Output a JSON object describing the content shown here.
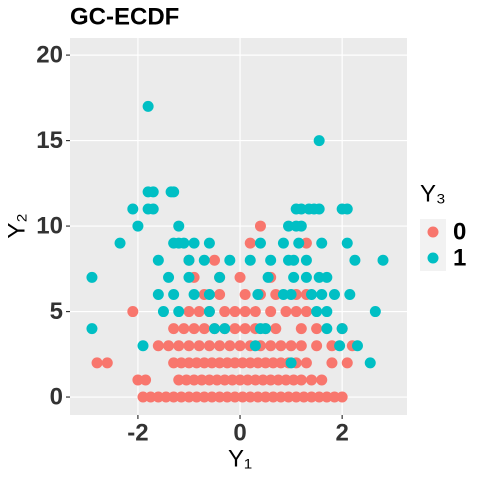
{
  "chart_data": {
    "type": "scatter",
    "title": "GC-ECDF",
    "xlabel": "Y₁",
    "ylabel": "Y₂",
    "legend_title": "Y₃",
    "legend": "right",
    "grid": true,
    "xlim": [
      -3.33,
      3.27
    ],
    "ylim": [
      -1.05,
      21.0
    ],
    "xticks": [
      -2,
      0,
      2
    ],
    "yticks": [
      0,
      5,
      10,
      15,
      20
    ],
    "series": [
      {
        "name": "0",
        "color": "#F8766D",
        "x": [
          -1.9,
          -1.75,
          -1.6,
          -1.45,
          -1.3,
          -1.15,
          -1.0,
          -0.85,
          -0.7,
          -0.55,
          -0.4,
          -0.25,
          -0.1,
          0.05,
          0.2,
          0.35,
          0.5,
          0.65,
          0.8,
          0.95,
          1.1,
          1.25,
          1.4,
          1.55,
          1.7,
          1.85,
          2.0,
          -2.0,
          -1.85,
          -1.2,
          -1.05,
          -0.9,
          -0.75,
          -0.6,
          -0.45,
          -0.3,
          -0.15,
          0,
          0.15,
          0.3,
          0.45,
          0.6,
          0.75,
          0.9,
          1.05,
          1.2,
          1.4,
          1.6,
          -2.8,
          -2.6,
          -1.3,
          -1.15,
          -1.0,
          -0.85,
          -0.7,
          -0.55,
          -0.4,
          -0.25,
          -0.1,
          0.05,
          0.2,
          0.35,
          0.5,
          0.65,
          0.8,
          0.95,
          1.1,
          1.3,
          1.8,
          2.1,
          -1.6,
          -1.4,
          -1.2,
          -1.0,
          -0.8,
          -0.6,
          -0.4,
          -0.2,
          0,
          0.2,
          0.4,
          0.6,
          0.8,
          1.0,
          1.2,
          1.5,
          1.8,
          2.2,
          -1.3,
          -1.1,
          -0.9,
          -0.7,
          -0.5,
          -0.3,
          -0.1,
          0.1,
          0.3,
          0.5,
          0.7,
          1.2,
          1.5,
          2.0,
          -2.1,
          -1.0,
          -0.8,
          -0.6,
          -0.3,
          -0.1,
          0.1,
          0.3,
          0.6,
          0.9,
          1.1,
          1.3,
          -0.7,
          -0.4,
          0.1,
          0.4,
          0.7,
          1.1,
          1.3,
          -0.9,
          -0.4,
          0,
          0.6,
          -1.0,
          -0.5,
          0.2,
          1.3,
          0.4
        ],
        "y": [
          0,
          0,
          0,
          0,
          0,
          0,
          0,
          0,
          0,
          0,
          0,
          0,
          0,
          0,
          0,
          0,
          0,
          0,
          0,
          0,
          0,
          0,
          0,
          0,
          0,
          0,
          0,
          1,
          1,
          1,
          1,
          1,
          1,
          1,
          1,
          1,
          1,
          1,
          1,
          1,
          1,
          1,
          1,
          1,
          1,
          1,
          1,
          1,
          2,
          2,
          2,
          2,
          2,
          2,
          2,
          2,
          2,
          2,
          2,
          2,
          2,
          2,
          2,
          2,
          2,
          2,
          2,
          2,
          2,
          2,
          3,
          3,
          3,
          3,
          3,
          3,
          3,
          3,
          3,
          3,
          3,
          3,
          3,
          3,
          3,
          3,
          3,
          3,
          4,
          4,
          4,
          4,
          4,
          4,
          4,
          4,
          4,
          4,
          4,
          4,
          4,
          4,
          5,
          5,
          5,
          5,
          5,
          5,
          5,
          5,
          5,
          5,
          5,
          5,
          6,
          6,
          6,
          6,
          6,
          6,
          6,
          7,
          7,
          7,
          7,
          8,
          8,
          9,
          9,
          10
        ]
      },
      {
        "name": "1",
        "color": "#00BFC4",
        "x": [
          -2.9,
          -2.9,
          -1.8,
          -2.1,
          -2.0,
          -2.35,
          -1.8,
          -1.7,
          -1.8,
          -1.7,
          -1.3,
          -1.35,
          -1.2,
          -1.3,
          -1.2,
          -1.1,
          -0.9,
          -0.6,
          -1.6,
          -1.0,
          -0.7,
          -0.2,
          0.2,
          -1.0,
          -1.4,
          -0.4,
          -1.6,
          -1.3,
          -0.9,
          -0.6,
          -1.5,
          -1.2,
          -0.6,
          -0.5,
          -0.3,
          1.55,
          1.1,
          1.2,
          1.35,
          1.45,
          1.55,
          2.0,
          2.1,
          1.2,
          1.1,
          0.95,
          0.4,
          0.85,
          1.15,
          1.6,
          2.1,
          0.6,
          0.95,
          1.05,
          1.3,
          2.25,
          2.8,
          0.55,
          1.05,
          1.3,
          1.55,
          1.7,
          0.35,
          0.85,
          1.0,
          1.4,
          1.6,
          1.85,
          2.15,
          1.5,
          1.7,
          2.65,
          0.4,
          0.5,
          1.7,
          2.0,
          1.95,
          2.3,
          -1.9,
          2.55,
          1.0,
          0.3
        ],
        "y": [
          7,
          4,
          17,
          11,
          10,
          9,
          12,
          12,
          11,
          11,
          12,
          12,
          10,
          9,
          9,
          9,
          9,
          9,
          8,
          8,
          8,
          8,
          8,
          7,
          7,
          7,
          6,
          6,
          6,
          6,
          5,
          5,
          5,
          4,
          4,
          15,
          11,
          11,
          11,
          11,
          11,
          11,
          11,
          10,
          10,
          10,
          9,
          9,
          9,
          9,
          9,
          8,
          8,
          8,
          8,
          8,
          8,
          7,
          7,
          7,
          7,
          7,
          6,
          6,
          6,
          6,
          6,
          6,
          6,
          5,
          5,
          5,
          4,
          4,
          4,
          4,
          3,
          3,
          3,
          2,
          2,
          3
        ]
      }
    ]
  }
}
